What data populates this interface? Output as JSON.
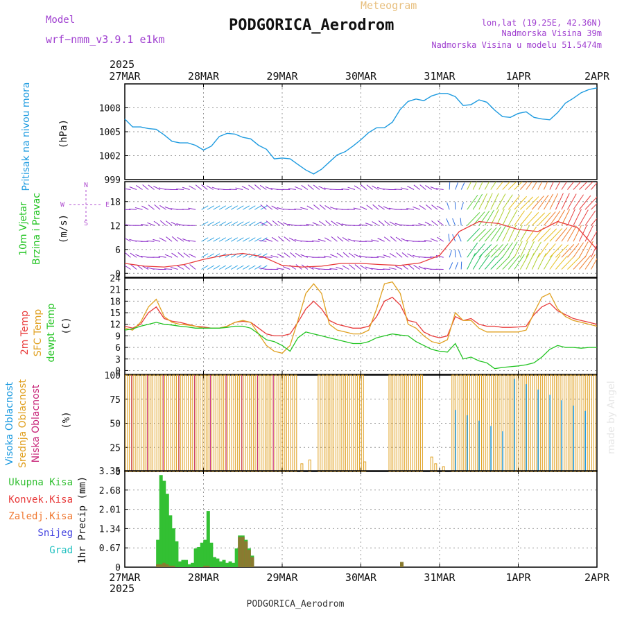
{
  "header": {
    "model_label": "Model",
    "model_name": "wrf−nmm_v3.9.1  e1km",
    "meteogram_label": "Meteogram",
    "station_title": "PODGORICA_Aerodrom",
    "coords": "lon,lat (19.25E, 42.36N)",
    "elevation": "Nadmorska Visina 39m",
    "model_elevation": "Nadmorska Visina u modelu 51.5474m",
    "year_top": "2025",
    "year_bottom": "2025",
    "footer_title": "PODGORICA_Aerodrom",
    "credit": "made by Angel"
  },
  "colors": {
    "pressure": "#1e9be0",
    "temp2m": "#e83a3a",
    "sfc_temp": "#e0a020",
    "dewpoint": "#22c422",
    "high_cloud": "#1e9be0",
    "mid_cloud": "#e0a020",
    "low_cloud": "#c8287a",
    "total_precip": "#33c033",
    "convective": "#e83a3a",
    "frozen": "#f07830",
    "snow": "#4545e0",
    "hail": "#20c0c0",
    "purple_text": "#a040d0",
    "grid": "#999999"
  },
  "chart_data": [
    {
      "type": "line",
      "id": "pressure",
      "ylabel_lines": [
        "Pritisak na nivou mora"
      ],
      "unit": "(hPa)",
      "x_ticks": [
        "27MAR",
        "28MAR",
        "29MAR",
        "30MAR",
        "31MAR",
        "1APR",
        "2APR"
      ],
      "ylim": [
        999,
        1011
      ],
      "y_ticks": [
        999,
        1002,
        1005,
        1008
      ],
      "series": [
        {
          "x": [
            0,
            0.1,
            0.2,
            0.3,
            0.4,
            0.5,
            0.6,
            0.7,
            0.8,
            0.9,
            1.0,
            1.1,
            1.2,
            1.3,
            1.4,
            1.5,
            1.6,
            1.7,
            1.8,
            1.9,
            2.0,
            2.1,
            2.2,
            2.3,
            2.4,
            2.5,
            2.6,
            2.7,
            2.8,
            2.9,
            3.0,
            3.1,
            3.2,
            3.3,
            3.4,
            3.5,
            3.6,
            3.7,
            3.8,
            3.9,
            4.0,
            4.1,
            4.2,
            4.3,
            4.4,
            4.5,
            4.6,
            4.7,
            4.8,
            4.9,
            5.0,
            5.1,
            5.2,
            5.3,
            5.4,
            5.5,
            5.6,
            5.7,
            5.8,
            5.9,
            6.0
          ],
          "values": [
            1006.6,
            1005.6,
            1005.6,
            1005.4,
            1005.3,
            1004.6,
            1003.8,
            1003.6,
            1003.6,
            1003.3,
            1002.7,
            1003.2,
            1004.4,
            1004.8,
            1004.7,
            1004.3,
            1004.1,
            1003.3,
            1002.8,
            1001.6,
            1001.7,
            1001.6,
            1000.9,
            1000.2,
            999.7,
            1000.3,
            1001.2,
            1002.1,
            1002.5,
            1003.2,
            1004.0,
            1004.9,
            1005.5,
            1005.5,
            1006.2,
            1007.8,
            1008.8,
            1009.1,
            1008.9,
            1009.5,
            1009.8,
            1009.8,
            1009.4,
            1008.3,
            1008.4,
            1009.0,
            1008.7,
            1007.7,
            1006.9,
            1006.8,
            1007.3,
            1007.5,
            1006.8,
            1006.6,
            1006.5,
            1007.4,
            1008.6,
            1009.2,
            1009.9,
            1010.3,
            1010.5
          ]
        }
      ]
    },
    {
      "type": "line",
      "id": "wind",
      "ylabel_lines": [
        "10m Vjetar",
        "Brzina i Pravac"
      ],
      "unit": "(m/s)",
      "compass": [
        "N",
        "W",
        "E",
        "S"
      ],
      "ylim": [
        -1,
        23
      ],
      "y_ticks": [
        0,
        6,
        12,
        18
      ],
      "series": [
        {
          "name": "speed",
          "x": [
            0,
            0.25,
            0.5,
            0.75,
            1.0,
            1.25,
            1.5,
            1.75,
            2.0,
            2.25,
            2.5,
            2.75,
            3.0,
            3.25,
            3.5,
            3.75,
            4.0,
            4.25,
            4.5,
            4.75,
            5.0,
            5.25,
            5.5,
            5.75,
            6.0
          ],
          "values": [
            2.5,
            1.8,
            1.6,
            2.2,
            3.5,
            4.5,
            5.0,
            4.2,
            2.0,
            1.6,
            1.8,
            2.5,
            2.5,
            2.2,
            2.0,
            2.6,
            4.5,
            10.5,
            13.0,
            12.5,
            11.0,
            10.5,
            13.0,
            11.5,
            6.0
          ]
        }
      ]
    },
    {
      "type": "line",
      "id": "temperature",
      "ylabel_lines": [
        "2m Temp",
        "SFC Temp",
        "dewpt Temp"
      ],
      "unit": "(C)",
      "ylim": [
        -1,
        24
      ],
      "y_ticks": [
        0,
        3,
        6,
        9,
        12,
        15,
        18,
        21,
        24
      ],
      "series": [
        {
          "name": "2m Temp",
          "x": [
            0,
            0.1,
            0.2,
            0.3,
            0.4,
            0.5,
            0.6,
            0.7,
            0.8,
            0.9,
            1.0,
            1.1,
            1.2,
            1.3,
            1.4,
            1.5,
            1.6,
            1.7,
            1.8,
            1.9,
            2.0,
            2.1,
            2.2,
            2.3,
            2.4,
            2.5,
            2.6,
            2.7,
            2.8,
            2.9,
            3.0,
            3.1,
            3.2,
            3.3,
            3.4,
            3.5,
            3.6,
            3.7,
            3.8,
            3.9,
            4.0,
            4.1,
            4.2,
            4.3,
            4.4,
            4.5,
            4.6,
            4.7,
            4.8,
            4.9,
            5.0,
            5.1,
            5.2,
            5.3,
            5.4,
            5.5,
            5.6,
            5.7,
            5.8,
            5.9,
            6.0
          ],
          "values": [
            11.5,
            11.0,
            12.0,
            15.0,
            16.5,
            13.5,
            12.8,
            12.5,
            12.0,
            11.5,
            11.3,
            11.0,
            11.0,
            11.5,
            12.5,
            12.8,
            12.5,
            11.0,
            9.5,
            9.0,
            9.0,
            9.5,
            12.5,
            16.0,
            18.0,
            16.0,
            13.0,
            12.0,
            11.5,
            11.0,
            11.0,
            11.5,
            14.0,
            18.0,
            19.0,
            17.0,
            13.0,
            12.5,
            10.0,
            9.0,
            8.5,
            9.0,
            14.0,
            13.0,
            13.5,
            12.0,
            11.5,
            11.5,
            11.2,
            11.2,
            11.3,
            11.5,
            14.5,
            16.5,
            17.5,
            15.5,
            14.5,
            13.5,
            13.0,
            12.5,
            12.0
          ]
        },
        {
          "name": "SFC Temp",
          "x": [
            0,
            0.1,
            0.2,
            0.3,
            0.4,
            0.5,
            0.6,
            0.7,
            0.8,
            0.9,
            1.0,
            1.1,
            1.2,
            1.3,
            1.4,
            1.5,
            1.6,
            1.7,
            1.8,
            1.9,
            2.0,
            2.1,
            2.2,
            2.3,
            2.4,
            2.5,
            2.6,
            2.7,
            2.8,
            2.9,
            3.0,
            3.1,
            3.2,
            3.3,
            3.4,
            3.5,
            3.6,
            3.7,
            3.8,
            3.9,
            4.0,
            4.1,
            4.2,
            4.3,
            4.4,
            4.5,
            4.6,
            4.7,
            4.8,
            4.9,
            5.0,
            5.1,
            5.2,
            5.3,
            5.4,
            5.5,
            5.6,
            5.7,
            5.8,
            5.9,
            6.0
          ],
          "values": [
            11.0,
            10.5,
            12.5,
            16.5,
            18.5,
            14.0,
            12.5,
            12.0,
            11.8,
            11.5,
            11.0,
            11.0,
            11.0,
            11.5,
            12.5,
            13.0,
            12.5,
            9.5,
            6.5,
            5.0,
            4.5,
            6.5,
            13.0,
            20.0,
            22.5,
            20.0,
            12.0,
            10.5,
            10.0,
            9.5,
            9.5,
            10.5,
            16.0,
            22.5,
            23.0,
            20.0,
            12.0,
            11.0,
            9.0,
            7.5,
            7.0,
            8.0,
            15.0,
            13.0,
            13.0,
            11.0,
            10.0,
            10.0,
            10.0,
            10.0,
            10.0,
            10.5,
            15.0,
            19.0,
            20.0,
            16.0,
            14.0,
            13.0,
            12.5,
            12.0,
            11.5
          ]
        },
        {
          "name": "dewpt Temp",
          "x": [
            0,
            0.1,
            0.2,
            0.3,
            0.4,
            0.5,
            0.6,
            0.7,
            0.8,
            0.9,
            1.0,
            1.1,
            1.2,
            1.3,
            1.4,
            1.5,
            1.6,
            1.7,
            1.8,
            1.9,
            2.0,
            2.1,
            2.2,
            2.3,
            2.4,
            2.5,
            2.6,
            2.7,
            2.8,
            2.9,
            3.0,
            3.1,
            3.2,
            3.3,
            3.4,
            3.5,
            3.6,
            3.7,
            3.8,
            3.9,
            4.0,
            4.1,
            4.2,
            4.3,
            4.4,
            4.5,
            4.6,
            4.7,
            4.8,
            4.9,
            5.0,
            5.1,
            5.2,
            5.3,
            5.4,
            5.5,
            5.6,
            5.7,
            5.8,
            5.9,
            6.0
          ],
          "values": [
            10.5,
            10.8,
            11.5,
            12.0,
            12.5,
            12.0,
            11.8,
            11.5,
            11.3,
            11.0,
            11.0,
            11.0,
            11.0,
            11.2,
            11.5,
            11.5,
            11.0,
            9.5,
            8.0,
            7.5,
            6.5,
            5.0,
            8.5,
            10.0,
            9.5,
            9.0,
            8.5,
            8.0,
            7.5,
            7.0,
            7.0,
            7.5,
            8.5,
            9.0,
            9.5,
            9.2,
            9.0,
            7.5,
            6.5,
            5.5,
            5.0,
            4.8,
            7.0,
            3.0,
            3.5,
            2.5,
            2.0,
            0.5,
            0.8,
            1.0,
            1.2,
            1.5,
            2.0,
            3.5,
            5.5,
            6.5,
            6.0,
            6.0,
            5.8,
            6.0,
            6.0
          ]
        }
      ]
    },
    {
      "type": "bar",
      "id": "cloud",
      "ylabel_lines": [
        "Visoka Oblacnost",
        "Srednja Oblacnost",
        "Niska Oblacnost"
      ],
      "unit": "(%)",
      "ylim": [
        0,
        100
      ],
      "y_ticks": [
        0,
        25,
        50,
        75,
        100
      ],
      "mid_cloud_present": [
        [
          0,
          2.2
        ],
        [
          2.45,
          3.05
        ],
        [
          3.35,
          3.8
        ],
        [
          4.15,
          6.0
        ]
      ],
      "low_cloud_present": [
        [
          0,
          2.0
        ]
      ],
      "high_cloud_present": [
        [
          4.15,
          5.95
        ]
      ],
      "small_mid_bars": [
        [
          2.25,
          8
        ],
        [
          2.35,
          12
        ],
        [
          3.05,
          10
        ],
        [
          3.9,
          15
        ],
        [
          3.95,
          8
        ],
        [
          4.05,
          5
        ]
      ]
    },
    {
      "type": "bar",
      "id": "precip",
      "ylabel_lines": [
        "1hr Precip (mm)"
      ],
      "legend": [
        "Ukupna Kisa",
        "Konvek.Kisa",
        "Zaledj.Kisa",
        "Snijeg",
        "Grad"
      ],
      "ylim": [
        0,
        3.35
      ],
      "y_ticks": [
        0,
        0.67,
        1.34,
        2.01,
        2.68,
        3.35
      ],
      "x": [
        0.42,
        0.46,
        0.5,
        0.54,
        0.58,
        0.62,
        0.66,
        0.7,
        0.74,
        0.78,
        0.82,
        0.86,
        0.9,
        0.94,
        0.98,
        1.02,
        1.06,
        1.1,
        1.14,
        1.18,
        1.22,
        1.26,
        1.3,
        1.34,
        1.38,
        1.42,
        1.46,
        1.5,
        1.54,
        1.58,
        1.62,
        3.52
      ],
      "values": [
        0.95,
        3.2,
        3.0,
        2.55,
        1.8,
        1.35,
        0.9,
        0.2,
        0.25,
        0.25,
        0.1,
        0.15,
        0.65,
        0.7,
        0.85,
        0.95,
        1.95,
        0.85,
        0.35,
        0.3,
        0.2,
        0.25,
        0.15,
        0.2,
        0.15,
        0.65,
        1.1,
        1.1,
        0.95,
        0.65,
        0.4,
        0.18
      ],
      "convective": [
        0.1,
        0.1,
        0.15,
        0.1,
        0.05,
        0.05,
        0,
        0,
        0,
        0,
        0,
        0,
        0,
        0,
        0,
        0.05,
        0.05,
        0,
        0,
        0,
        0,
        0,
        0,
        0,
        0,
        0,
        1.05,
        1.05,
        0.9,
        0.6,
        0.35,
        0.18
      ]
    }
  ]
}
